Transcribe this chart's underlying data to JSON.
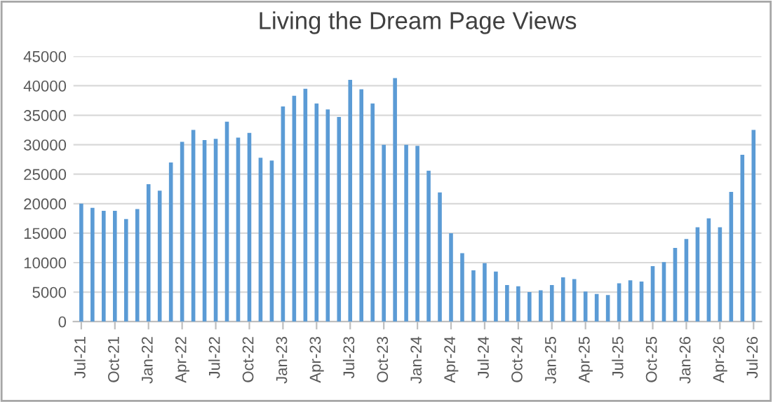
{
  "chart_data": {
    "type": "bar",
    "title": "Living the Dream Page Views",
    "categories": [
      "Jul-21",
      null,
      null,
      "Oct-21",
      null,
      null,
      "Jan-22",
      null,
      null,
      "Apr-22",
      null,
      null,
      "Jul-22",
      null,
      null,
      "Oct-22",
      null,
      null,
      "Jan-23",
      null,
      null,
      "Apr-23",
      null,
      null,
      "Jul-23",
      null,
      null,
      "Oct-23",
      null,
      null,
      "Jan-24",
      null,
      null,
      "Apr-24",
      null,
      null,
      "Jul-24",
      null,
      null,
      "Oct-24",
      null,
      null,
      "Jan-25",
      null,
      null,
      "Apr-25",
      null,
      null,
      "Jul-25",
      null,
      null,
      "Oct-25",
      null,
      null,
      "Jan-26",
      null,
      null,
      "Apr-26",
      null,
      null,
      "Jul-26"
    ],
    "values": [
      20000,
      19300,
      18800,
      18800,
      17400,
      19100,
      23300,
      22200,
      27000,
      30500,
      32500,
      30800,
      31000,
      33900,
      31200,
      32000,
      27800,
      27300,
      36500,
      38300,
      39500,
      37000,
      36000,
      34700,
      41000,
      39400,
      37000,
      30000,
      41300,
      30000,
      29800,
      25600,
      21900,
      15000,
      11600,
      8700,
      9900,
      8500,
      6200,
      6000,
      5000,
      5300,
      6200,
      7500,
      7200,
      5100,
      4700,
      4500,
      6500,
      7000,
      6800,
      9400,
      10100,
      12500,
      14000,
      16000,
      17500,
      16000,
      22000,
      28300,
      32500
    ],
    "color": "#5b9bd5",
    "ylim": [
      0,
      45000
    ],
    "yticks": [
      0,
      5000,
      10000,
      15000,
      20000,
      25000,
      30000,
      35000,
      40000,
      45000
    ],
    "grid": "y",
    "legend": false
  }
}
